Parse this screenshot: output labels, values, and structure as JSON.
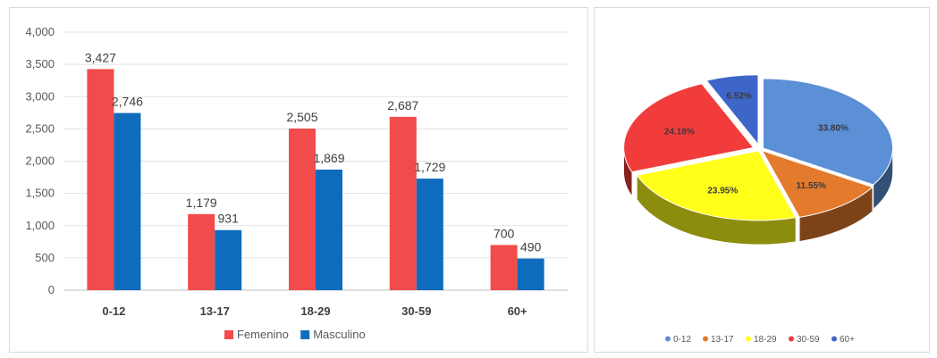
{
  "chart_data": [
    {
      "type": "bar",
      "categories": [
        "0-12",
        "13-17",
        "18-29",
        "30-59",
        "60+"
      ],
      "series": [
        {
          "name": "Femenino",
          "values": [
            3427,
            1179,
            2505,
            2687,
            700
          ],
          "labels": [
            "3,427",
            "1,179",
            "2,505",
            "2,687",
            "700"
          ]
        },
        {
          "name": "Masculino",
          "values": [
            2746,
            931,
            1869,
            1729,
            490
          ],
          "labels": [
            "2,746",
            "931",
            "1,869",
            "1,729",
            "490"
          ]
        }
      ],
      "yticks": [
        "0",
        "500",
        "1,000",
        "1,500",
        "2,000",
        "2,500",
        "3,000",
        "3,500",
        "4,000"
      ],
      "ylim": [
        0,
        4000
      ],
      "grid": true,
      "legend": "bottom",
      "colors": [
        "#f24b4b",
        "#0f6cbd"
      ]
    },
    {
      "type": "pie",
      "categories": [
        "0-12",
        "13-17",
        "18-29",
        "30-59",
        "60+"
      ],
      "values": [
        33.8,
        11.55,
        23.95,
        24.18,
        6.52
      ],
      "labels": [
        "33.80%",
        "11.55%",
        "23.95%",
        "24.18%",
        "6.52%"
      ],
      "colors": [
        "#5b8fd6",
        "#e47a2c",
        "#ffff1a",
        "#f23c3c",
        "#3e66c8"
      ],
      "legend": "bottom"
    }
  ]
}
